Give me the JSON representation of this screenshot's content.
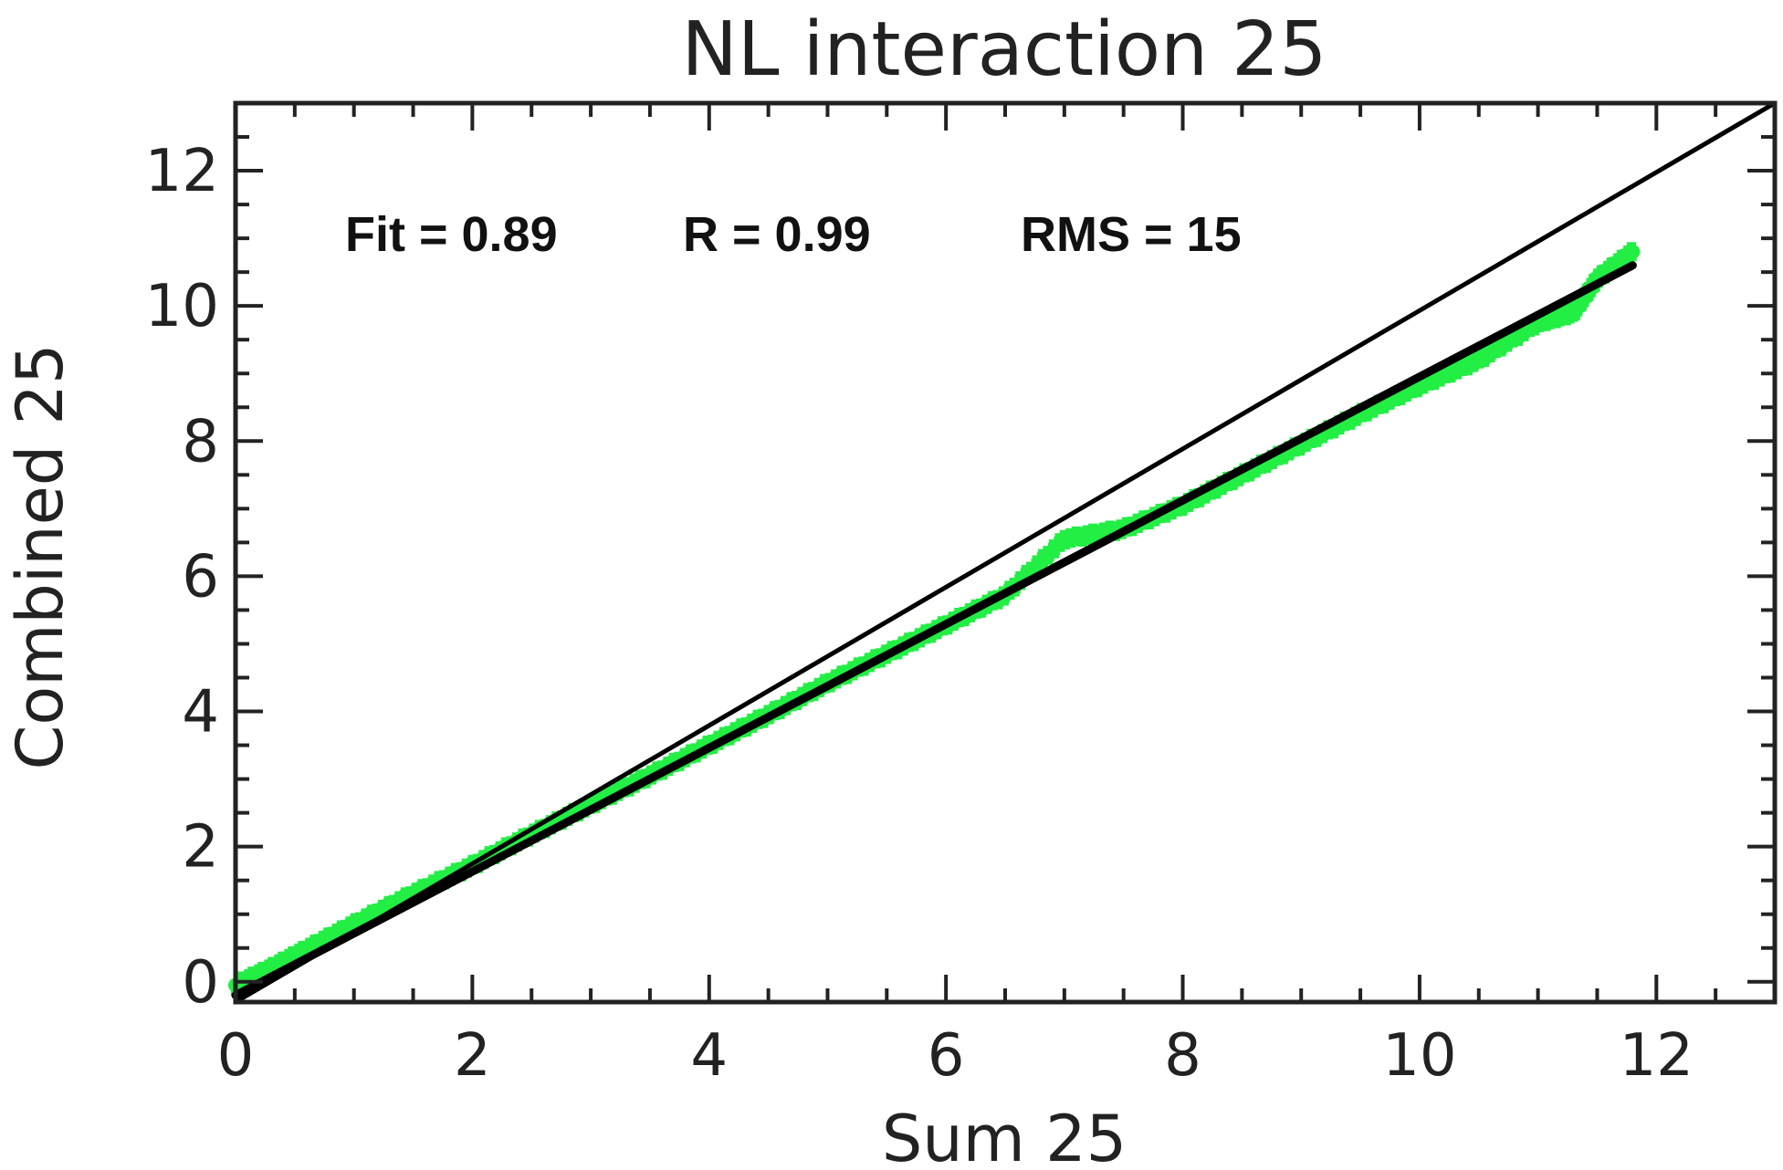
{
  "chart_data": {
    "type": "scatter",
    "title": "NL interaction 25",
    "xlabel": "Sum   25",
    "ylabel": "Combined 25",
    "xlim": [
      0,
      13
    ],
    "ylim": [
      -0.3,
      13
    ],
    "x_ticks": [
      0,
      2,
      4,
      6,
      8,
      10,
      12
    ],
    "x_tick_labels": [
      "0",
      "2",
      "4",
      "6",
      "8",
      "10",
      "12"
    ],
    "y_ticks": [
      0,
      2,
      4,
      6,
      8,
      10,
      12
    ],
    "y_tick_labels": [
      "0",
      "2",
      "4",
      "6",
      "8",
      "10",
      "12"
    ],
    "grid": false,
    "annotations": [
      "Fit = 0.89",
      "R = 0.99",
      "RMS = 15"
    ],
    "series": [
      {
        "kind": "scatter",
        "color": "#22ee44",
        "points": [
          [
            0.0,
            -0.05
          ],
          [
            0.3,
            0.2
          ],
          [
            0.6,
            0.48
          ],
          [
            1.0,
            0.85
          ],
          [
            1.5,
            1.3
          ],
          [
            2.0,
            1.72
          ],
          [
            2.5,
            2.18
          ],
          [
            3.0,
            2.62
          ],
          [
            3.5,
            3.05
          ],
          [
            4.0,
            3.5
          ],
          [
            4.5,
            3.95
          ],
          [
            5.0,
            4.42
          ],
          [
            5.5,
            4.85
          ],
          [
            6.0,
            5.28
          ],
          [
            6.5,
            5.72
          ],
          [
            7.0,
            6.55
          ],
          [
            7.5,
            6.7
          ],
          [
            8.0,
            7.05
          ],
          [
            8.5,
            7.5
          ],
          [
            9.0,
            7.95
          ],
          [
            9.5,
            8.4
          ],
          [
            10.0,
            8.82
          ],
          [
            10.5,
            9.2
          ],
          [
            11.0,
            9.75
          ],
          [
            11.3,
            9.9
          ],
          [
            11.5,
            10.4
          ],
          [
            11.8,
            10.8
          ]
        ]
      },
      {
        "kind": "line",
        "name": "fit",
        "color": "#000000",
        "x": [
          0,
          11.8
        ],
        "y": [
          -0.2,
          10.6
        ]
      },
      {
        "kind": "line",
        "name": "one-to-one",
        "color": "#000000",
        "x": [
          0,
          13
        ],
        "y": [
          -0.3,
          13
        ]
      }
    ]
  }
}
